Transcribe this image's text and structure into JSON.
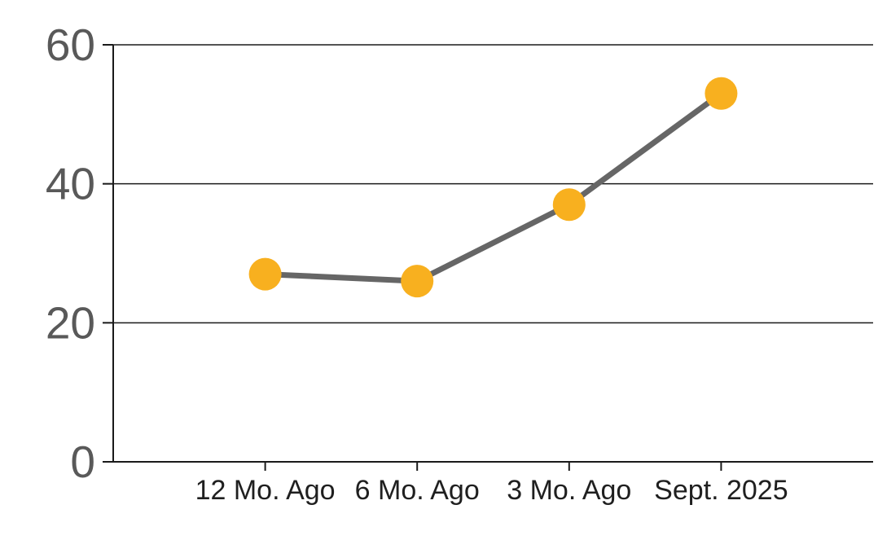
{
  "chart_data": {
    "type": "line",
    "categories": [
      "12 Mo. Ago",
      "6 Mo. Ago",
      "3 Mo. Ago",
      "Sept. 2025"
    ],
    "values": [
      27,
      26,
      37,
      53
    ],
    "title": "",
    "xlabel": "",
    "ylabel": "",
    "ylim": [
      0,
      60
    ],
    "yticks": [
      0,
      20,
      40,
      60
    ],
    "grid": true,
    "legend": false,
    "colors": {
      "marker": "#F8B01F",
      "line": "#666666",
      "axis": "#1A1A1A",
      "gridline": "#1A1A1A",
      "ytick_label": "#595959",
      "xtick_label": "#1F1F1F",
      "background": "#FFFFFF"
    }
  }
}
